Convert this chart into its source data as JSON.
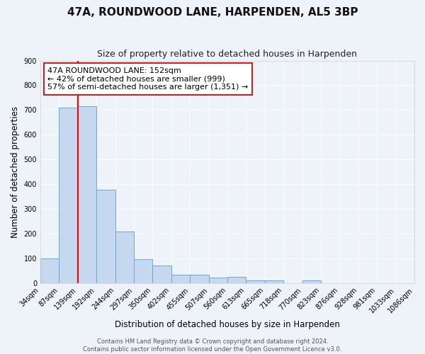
{
  "title": "47A, ROUNDWOOD LANE, HARPENDEN, AL5 3BP",
  "subtitle": "Size of property relative to detached houses in Harpenden",
  "xlabel": "Distribution of detached houses by size in Harpenden",
  "ylabel": "Number of detached properties",
  "bar_values": [
    100,
    710,
    715,
    378,
    208,
    98,
    72,
    34,
    35,
    22,
    25,
    10,
    10,
    0,
    10,
    0,
    0,
    0,
    0,
    0
  ],
  "bar_labels": [
    "34sqm",
    "87sqm",
    "139sqm",
    "192sqm",
    "244sqm",
    "297sqm",
    "350sqm",
    "402sqm",
    "455sqm",
    "507sqm",
    "560sqm",
    "613sqm",
    "665sqm",
    "718sqm",
    "770sqm",
    "823sqm",
    "876sqm",
    "928sqm",
    "981sqm",
    "1033sqm",
    "1086sqm"
  ],
  "bar_color": "#c5d8f0",
  "bar_edge_color": "#6aaad4",
  "red_line_x": 2.0,
  "ylim": [
    0,
    900
  ],
  "yticks": [
    0,
    100,
    200,
    300,
    400,
    500,
    600,
    700,
    800,
    900
  ],
  "annotation_line1": "47A ROUNDWOOD LANE: 152sqm",
  "annotation_line2": "← 42% of detached houses are smaller (999)",
  "annotation_line3": "57% of semi-detached houses are larger (1,351) →",
  "footer_line1": "Contains HM Land Registry data © Crown copyright and database right 2024.",
  "footer_line2": "Contains public sector information licensed under the Open Government Licence v3.0.",
  "background_color": "#eef2f9",
  "grid_color": "#ffffff",
  "title_fontsize": 11,
  "subtitle_fontsize": 9,
  "axis_label_fontsize": 8.5,
  "tick_fontsize": 7,
  "annotation_fontsize": 8,
  "footer_fontsize": 6
}
